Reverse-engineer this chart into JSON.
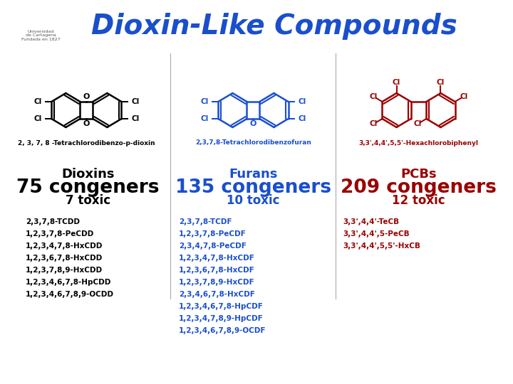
{
  "title": "Dioxin-Like Compounds",
  "title_color": "#1a4fcc",
  "bg_color": "#ffffff",
  "col1": {
    "header": "Dioxins",
    "congeners": "75 congeners",
    "toxic": "7 toxic",
    "header_color": "#000000",
    "congeners_color": "#000000",
    "toxic_color": "#000000",
    "list": [
      "2,3,7,8-TCDD",
      "1,2,3,7,8-PeCDD",
      "1,2,3,4,7,8-HxCDD",
      "1,2,3,6,7,8-HxCDD",
      "1,2,3,7,8,9-HxCDD",
      "1,2,3,4,6,7,8-HpCDD",
      "1,2,3,4,6,7,8,9-OCDD"
    ],
    "list_color": "#000000"
  },
  "col2": {
    "header": "Furans",
    "congeners": "135 congeners",
    "toxic": "10 toxic",
    "header_color": "#1a4fcc",
    "congeners_color": "#1a4fcc",
    "toxic_color": "#1a4fcc",
    "list": [
      "2,3,7,8-TCDF",
      "1,2,3,7,8-PeCDF",
      "2,3,4,7,8-PeCDF",
      "1,2,3,4,7,8-HxCDF",
      "1,2,3,6,7,8-HxCDF",
      "1,2,3,7,8,9-HxCDF",
      "2,3,4,6,7,8-HxCDF",
      "1,2,3,4,6,7,8-HpCDF",
      "1,2,3,4,7,8,9-HpCDF",
      "1,2,3,4,6,7,8,9-OCDF"
    ],
    "list_color": "#1a4fcc"
  },
  "col3": {
    "header": "PCBs",
    "congeners": "209 congeners",
    "toxic": "12 toxic",
    "header_color": "#990000",
    "congeners_color": "#990000",
    "toxic_color": "#990000",
    "list": [
      "3,3',4,4'-TeCB",
      "3,3',4,4',5-PeCB",
      "3,3',4,4',5,5'-HxCB"
    ],
    "list_color": "#990000"
  },
  "mol1_label": "2, 3, 7, 8 -Tetrachlorodibenzo-p-dioxin",
  "mol2_label": "2,3,7,8-Tetrachlorodibenzofuran",
  "mol3_label": "3,3',4,4',5,5'-Hexachlorobiphenyl",
  "label_color": "#000000"
}
